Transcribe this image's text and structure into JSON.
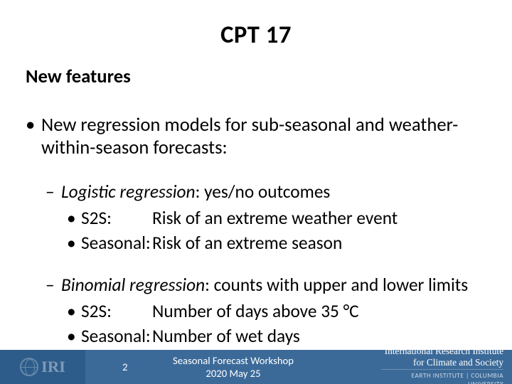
{
  "colors": {
    "footer_left_bg": "#2e5c8a",
    "footer_mid_bg": "#3b6a99",
    "text": "#000000",
    "footer_text": "#ffffff",
    "logo_stroke": "#9db6cc"
  },
  "typography": {
    "title_size_pt": 26,
    "subtitle_size_pt": 20,
    "body_size_pt": 20,
    "sub_body_size_pt": 19,
    "footer_size_pt": 11,
    "inst_top_size_pt": 10,
    "inst_bottom_size_pt": 7
  },
  "title": "CPT 17",
  "subtitle": "New features",
  "bullets": {
    "main": "New regression models for sub-seasonal and weather-within-season forecasts:",
    "sections": [
      {
        "heading_em": "Logistic regression",
        "heading_rest": ": yes/no outcomes",
        "items": [
          {
            "key": "S2S:",
            "val": "Risk of an extreme weather event"
          },
          {
            "key": "Seasonal:",
            "val": "Risk of an extreme season"
          }
        ]
      },
      {
        "heading_em": "Binomial regression",
        "heading_rest": ": counts with upper and lower limits",
        "items": [
          {
            "key": "S2S:",
            "val": "Number of days above 35 °C"
          },
          {
            "key": "Seasonal:",
            "val": "Number of wet days"
          }
        ]
      }
    ]
  },
  "footer": {
    "logo_text": "IRI",
    "slide_number": "2",
    "workshop_line1": "Seasonal Forecast Workshop",
    "workshop_line2": "2020 May 25",
    "inst_line1": "International Research Institute",
    "inst_line2": "for Climate and Society",
    "inst_sub": "EARTH INSTITUTE | COLUMBIA UNIVERSITY"
  }
}
